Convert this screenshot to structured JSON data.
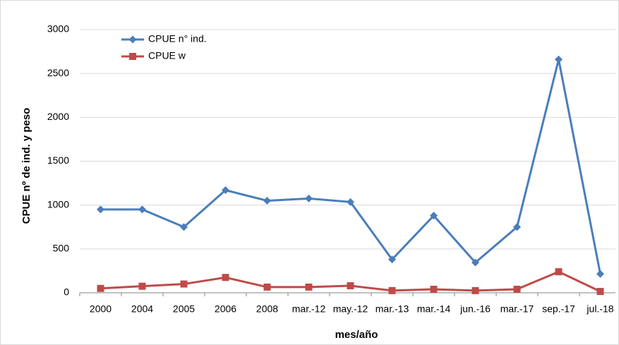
{
  "chart_data": {
    "type": "line",
    "y_label": "CPUE nº de ind. y peso",
    "x_label": "mes/año",
    "categories": [
      "2000",
      "2004",
      "2005",
      "2006",
      "2008",
      "mar.-12",
      "may.-12",
      "mar.-13",
      "mar.-14",
      "jun.-16",
      "mar.-17",
      "sep.-17",
      "jul.-18"
    ],
    "series": [
      {
        "name": "CPUE n° ind.",
        "color": "#4a7ebb",
        "marker": "diamond",
        "values": [
          950,
          950,
          750,
          1170,
          1050,
          1075,
          1035,
          380,
          880,
          345,
          750,
          2660,
          215
        ]
      },
      {
        "name": "CPUE w",
        "color": "#be4b48",
        "marker": "square",
        "values": [
          50,
          75,
          100,
          175,
          65,
          65,
          80,
          25,
          40,
          25,
          40,
          240,
          15
        ]
      }
    ],
    "ylim": [
      0,
      3000
    ],
    "yticks": [
      0,
      500,
      1000,
      1500,
      2000,
      2500,
      3000
    ],
    "grid": true
  }
}
